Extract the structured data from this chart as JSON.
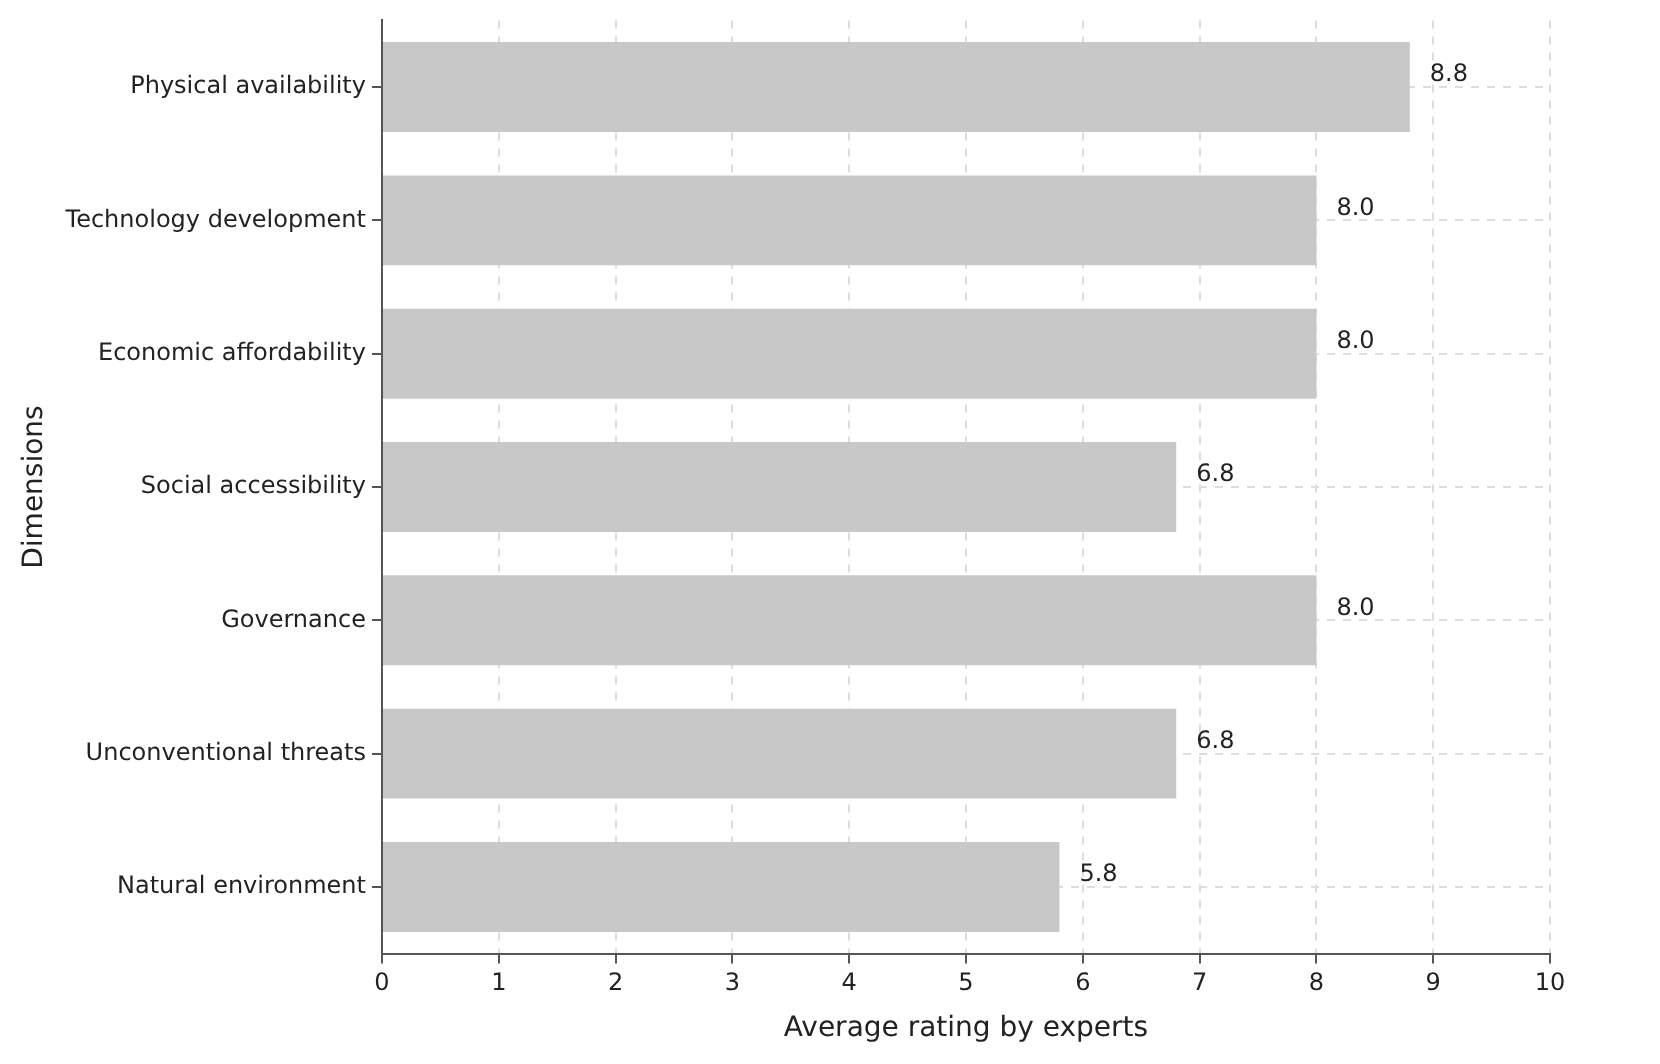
{
  "chart_data": {
    "type": "bar",
    "orientation": "horizontal",
    "xlabel": "Average rating by experts",
    "ylabel": "Dimensions",
    "categories": [
      "Physical availability",
      "Technology development",
      "Economic affordability",
      "Social accessibility",
      "Governance",
      "Unconventional threats",
      "Natural environment"
    ],
    "values": [
      8.8,
      8.0,
      8.0,
      6.8,
      8.0,
      6.8,
      5.8
    ],
    "value_labels": [
      "8.8",
      "8.0",
      "8.0",
      "6.8",
      "8.0",
      "6.8",
      "5.8"
    ],
    "color": "#c8c8c8",
    "xlim": [
      0,
      10
    ],
    "xticks": [
      0,
      1,
      2,
      3,
      4,
      5,
      6,
      7,
      8,
      9,
      10
    ],
    "grid": true,
    "legend": false
  }
}
